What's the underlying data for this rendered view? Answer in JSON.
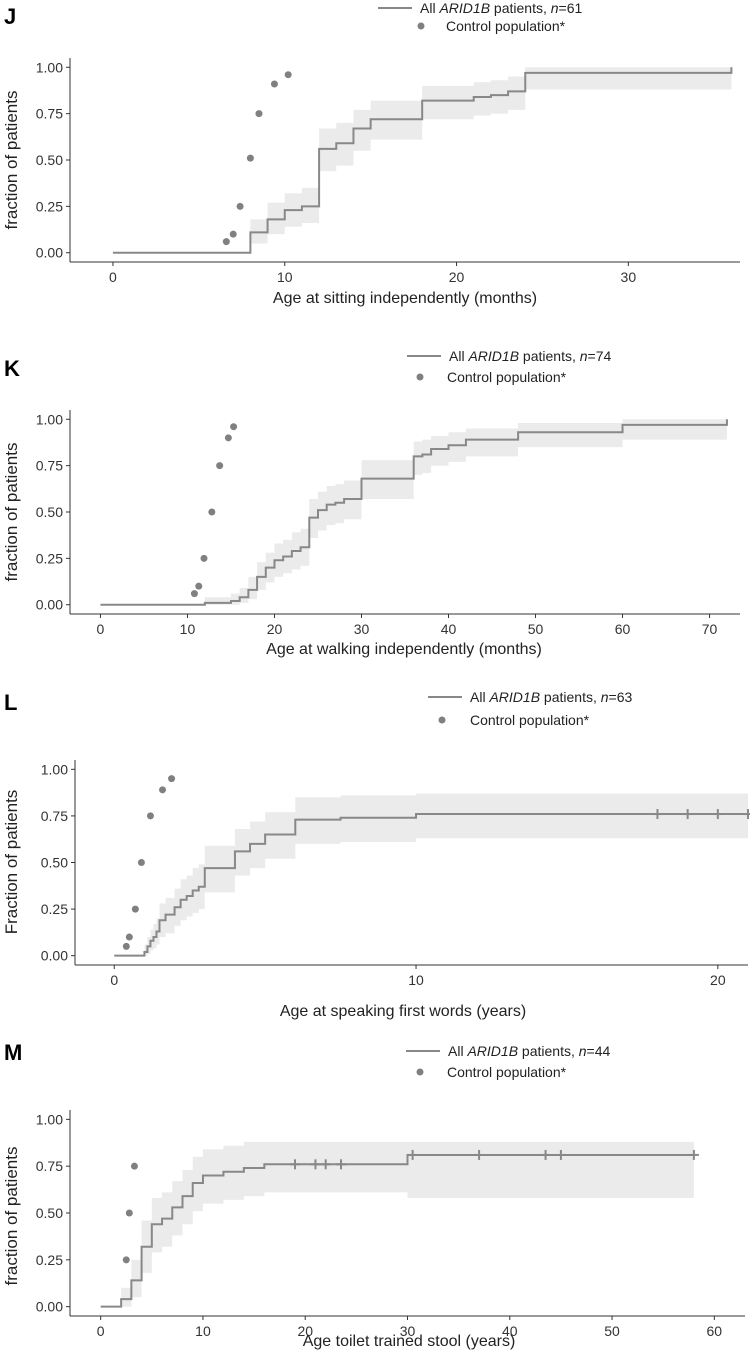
{
  "figure": {
    "colors": {
      "line": "#888888",
      "band": "#ebebeb",
      "point": "#808080",
      "axis": "#333333"
    }
  },
  "chart_data": [
    {
      "type": "line",
      "panel": "J",
      "title": "",
      "xlabel": "Age at sitting independently (months)",
      "ylabel": "fraction of patients",
      "xlim": [
        -2.5,
        36.5
      ],
      "ylim": [
        -0.05,
        1.05
      ],
      "xticks": [
        0,
        10,
        20,
        30
      ],
      "yticks": [
        0,
        0.25,
        0.5,
        0.75,
        1.0
      ],
      "ytick_labels": [
        "0.00",
        "0.25",
        "0.50",
        "0.75",
        "1.00"
      ],
      "grid": false,
      "legend": {
        "position": "top-right",
        "patients_prefix": "All ",
        "gene": "ARID1B",
        "patients_suffix": " patients, ",
        "n_italic": "n",
        "n_value": "=61",
        "control": "Control population*"
      },
      "series": [
        {
          "name": "All ARID1B patients",
          "kind": "step",
          "x": [
            0,
            8,
            9,
            10,
            11,
            12,
            13,
            14,
            15,
            18,
            21,
            22,
            23,
            24,
            36
          ],
          "y": [
            0.0,
            0.11,
            0.18,
            0.23,
            0.25,
            0.56,
            0.59,
            0.67,
            0.72,
            0.82,
            0.84,
            0.85,
            0.87,
            0.97,
            1.0
          ],
          "lower": [
            0.0,
            0.05,
            0.1,
            0.14,
            0.16,
            0.44,
            0.47,
            0.55,
            0.61,
            0.72,
            0.74,
            0.75,
            0.77,
            0.88,
            1.0
          ],
          "upper": [
            0.0,
            0.18,
            0.27,
            0.32,
            0.35,
            0.67,
            0.7,
            0.77,
            0.82,
            0.9,
            0.92,
            0.93,
            0.95,
            1.0,
            1.0
          ],
          "censored": []
        },
        {
          "name": "Control population*",
          "kind": "scatter",
          "x": [
            6.6,
            7.0,
            7.4,
            8.0,
            8.5,
            9.4,
            10.2
          ],
          "y": [
            0.06,
            0.1,
            0.25,
            0.51,
            0.75,
            0.91,
            0.96
          ]
        }
      ]
    },
    {
      "type": "line",
      "panel": "K",
      "title": "",
      "xlabel": "Age at walking independently (months)",
      "ylabel": "fraction of patients",
      "xlim": [
        -3.5,
        73.5
      ],
      "ylim": [
        -0.05,
        1.05
      ],
      "xticks": [
        0,
        10,
        20,
        30,
        40,
        50,
        60,
        70
      ],
      "yticks": [
        0,
        0.25,
        0.5,
        0.75,
        1.0
      ],
      "ytick_labels": [
        "0.00",
        "0.25",
        "0.50",
        "0.75",
        "1.00"
      ],
      "grid": false,
      "legend": {
        "position": "top-right",
        "patients_prefix": "All ",
        "gene": "ARID1B",
        "patients_suffix": " patients, ",
        "n_italic": "n",
        "n_value": "=74",
        "control": "Control population*"
      },
      "series": [
        {
          "name": "All ARID1B patients",
          "kind": "step",
          "x": [
            0,
            12,
            15,
            16,
            17,
            18,
            19,
            20,
            21,
            22,
            23,
            24,
            25,
            26,
            27,
            28,
            30,
            36,
            37,
            38,
            40,
            42,
            48,
            60,
            72
          ],
          "y": [
            0.0,
            0.01,
            0.02,
            0.04,
            0.08,
            0.15,
            0.2,
            0.24,
            0.26,
            0.29,
            0.31,
            0.47,
            0.51,
            0.54,
            0.55,
            0.57,
            0.68,
            0.8,
            0.81,
            0.84,
            0.86,
            0.89,
            0.93,
            0.97,
            1.0
          ],
          "lower": [
            0.0,
            0.0,
            0.0,
            0.01,
            0.03,
            0.08,
            0.12,
            0.15,
            0.17,
            0.19,
            0.21,
            0.36,
            0.4,
            0.43,
            0.44,
            0.46,
            0.57,
            0.7,
            0.71,
            0.75,
            0.77,
            0.8,
            0.85,
            0.89,
            1.0
          ],
          "upper": [
            0.0,
            0.04,
            0.06,
            0.09,
            0.15,
            0.23,
            0.28,
            0.33,
            0.35,
            0.39,
            0.41,
            0.57,
            0.61,
            0.64,
            0.65,
            0.67,
            0.78,
            0.88,
            0.89,
            0.91,
            0.93,
            0.95,
            0.98,
            1.0,
            1.0
          ],
          "censored": []
        },
        {
          "name": "Control population*",
          "kind": "scatter",
          "x": [
            10.8,
            11.3,
            11.9,
            12.8,
            13.7,
            14.7,
            15.3
          ],
          "y": [
            0.06,
            0.1,
            0.25,
            0.5,
            0.75,
            0.9,
            0.96
          ]
        }
      ]
    },
    {
      "type": "line",
      "panel": "L",
      "title": "",
      "xlabel": "Age at speaking first words (years)",
      "ylabel": "Fraction of patients",
      "xlim": [
        -1.3,
        21.0
      ],
      "ylim": [
        -0.05,
        1.05
      ],
      "xticks": [
        0,
        10,
        20
      ],
      "yticks": [
        0,
        0.25,
        0.5,
        0.75,
        1.0
      ],
      "ytick_labels": [
        "0.00",
        "0.25",
        "0.50",
        "0.75",
        "1.00"
      ],
      "grid": false,
      "legend": {
        "position": "top-right",
        "patients_prefix": "All ",
        "gene": "ARID1B",
        "patients_suffix": " patients, ",
        "n_italic": "n",
        "n_value": "=63",
        "control": "Control population*"
      },
      "series": [
        {
          "name": "All ARID1B patients",
          "kind": "step",
          "x": [
            0,
            1.0,
            1.1,
            1.2,
            1.3,
            1.4,
            1.5,
            1.7,
            2.0,
            2.2,
            2.4,
            2.6,
            2.8,
            3.0,
            4.0,
            4.5,
            5.0,
            6.0,
            7.5,
            10.0,
            21.0
          ],
          "y": [
            0.0,
            0.02,
            0.05,
            0.08,
            0.1,
            0.13,
            0.19,
            0.22,
            0.26,
            0.3,
            0.32,
            0.35,
            0.37,
            0.47,
            0.56,
            0.6,
            0.65,
            0.73,
            0.74,
            0.76,
            0.76
          ],
          "lower": [
            0.0,
            0.0,
            0.01,
            0.03,
            0.04,
            0.06,
            0.1,
            0.12,
            0.16,
            0.19,
            0.21,
            0.23,
            0.25,
            0.34,
            0.43,
            0.47,
            0.52,
            0.6,
            0.61,
            0.63,
            0.63
          ],
          "upper": [
            0.0,
            0.06,
            0.1,
            0.14,
            0.17,
            0.2,
            0.28,
            0.31,
            0.36,
            0.41,
            0.43,
            0.47,
            0.49,
            0.59,
            0.68,
            0.72,
            0.77,
            0.85,
            0.86,
            0.87,
            0.87
          ],
          "censored": [
            18,
            19,
            20,
            21
          ]
        },
        {
          "name": "Control population*",
          "kind": "scatter",
          "x": [
            0.4,
            0.5,
            0.7,
            0.9,
            1.2,
            1.6,
            1.9
          ],
          "y": [
            0.05,
            0.1,
            0.25,
            0.5,
            0.75,
            0.89,
            0.95
          ]
        }
      ]
    },
    {
      "type": "line",
      "panel": "M",
      "title": "",
      "xlabel": "Age toilet trained stool (years)",
      "ylabel": "fraction of patients",
      "xlim": [
        -3.0,
        63.0
      ],
      "ylim": [
        -0.05,
        1.05
      ],
      "xticks": [
        0,
        10,
        20,
        30,
        40,
        50,
        60
      ],
      "yticks": [
        0,
        0.25,
        0.5,
        0.75,
        1.0
      ],
      "ytick_labels": [
        "0.00",
        "0.25",
        "0.50",
        "0.75",
        "1.00"
      ],
      "grid": false,
      "legend": {
        "position": "top-right",
        "patients_prefix": "All ",
        "gene": "ARID1B",
        "patients_suffix": " patients, ",
        "n_italic": "n",
        "n_value": "=44",
        "control": "Control population*"
      },
      "series": [
        {
          "name": "All ARID1B patients",
          "kind": "step",
          "x": [
            0,
            2,
            3,
            4,
            5,
            6,
            7,
            8,
            9,
            10,
            12,
            14,
            16,
            30,
            58
          ],
          "y": [
            0.0,
            0.04,
            0.14,
            0.32,
            0.44,
            0.47,
            0.53,
            0.59,
            0.66,
            0.7,
            0.72,
            0.74,
            0.76,
            0.81,
            0.81
          ],
          "lower": [
            0.0,
            0.0,
            0.05,
            0.18,
            0.29,
            0.32,
            0.38,
            0.44,
            0.51,
            0.55,
            0.57,
            0.59,
            0.61,
            0.58,
            0.58
          ],
          "upper": [
            0.0,
            0.1,
            0.25,
            0.46,
            0.58,
            0.61,
            0.67,
            0.73,
            0.8,
            0.84,
            0.86,
            0.88,
            0.88,
            0.88,
            0.88
          ],
          "censored": [
            19,
            21,
            22,
            23.5,
            30.5,
            37,
            43.5,
            45,
            58
          ]
        },
        {
          "name": "Control population*",
          "kind": "scatter",
          "x": [
            2.5,
            2.8,
            3.3
          ],
          "y": [
            0.25,
            0.5,
            0.75
          ]
        }
      ]
    }
  ]
}
